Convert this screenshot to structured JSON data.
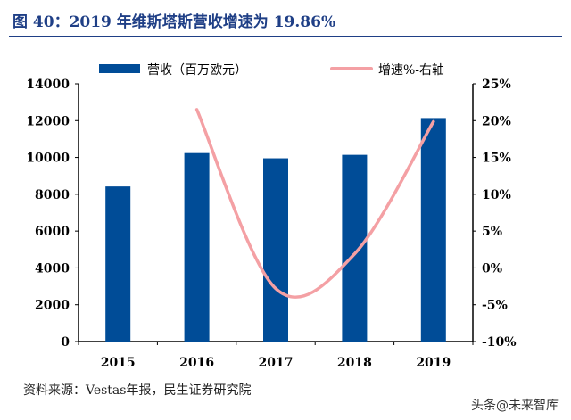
{
  "title": "图 40：2019 年维斯塔斯营收增速为 19.86%",
  "source": "资料来源：Vestas年报，民生证券研究院",
  "watermark": "头条@未来智库",
  "chart_data": {
    "type": "bar+line",
    "categories": [
      "2015",
      "2016",
      "2017",
      "2018",
      "2019"
    ],
    "series": [
      {
        "name": "营收（百万欧元）",
        "type": "bar",
        "axis": "left",
        "color": "#004c97",
        "values": [
          8423,
          10237,
          9953,
          10142,
          12139
        ]
      },
      {
        "name": "增速%-右轴",
        "type": "line",
        "axis": "right",
        "color": "#f4a0a4",
        "values": [
          null,
          21.5,
          -2.8,
          1.9,
          19.86
        ]
      }
    ],
    "left_axis": {
      "ylim": [
        0,
        14000
      ],
      "ticks": [
        "0",
        "2000",
        "4000",
        "6000",
        "8000",
        "10000",
        "12000",
        "14000"
      ]
    },
    "right_axis": {
      "ylim": [
        -10,
        25
      ],
      "ticks": [
        "-10%",
        "-5%",
        "0%",
        "5%",
        "10%",
        "15%",
        "20%",
        "25%"
      ]
    },
    "grid": false,
    "legend": "top"
  }
}
